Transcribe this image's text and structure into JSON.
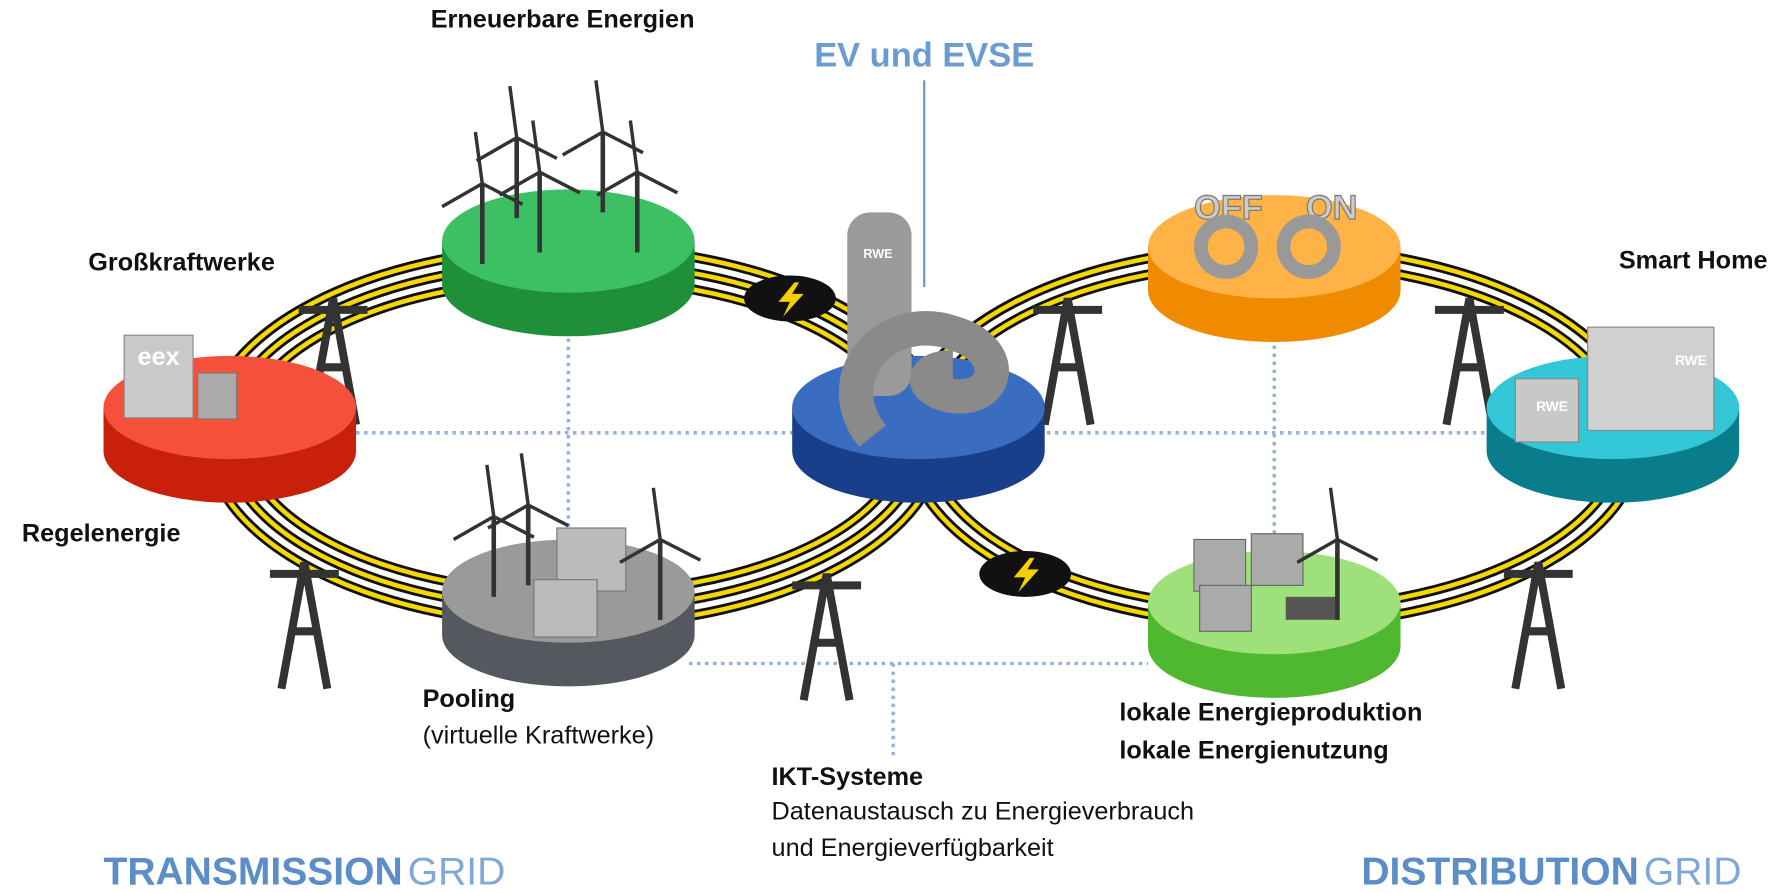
{
  "labels": {
    "renewables": "Erneuerbare Energien",
    "ev": "EV und EVSE",
    "power_plants": "Großkraftwerke",
    "smart_home": "Smart Home",
    "balancing": "Regelenergie",
    "pooling": "Pooling",
    "pooling_sub": "(virtuelle Kraftwerke)",
    "local_1": "lokale Energieproduktion",
    "local_2": "lokale Energienutzung",
    "ict": "IKT-Systeme",
    "ict_sub_1": "Datenaustausch zu Energieverbrauch",
    "ict_sub_2": "und Energieverfügbarkeit"
  },
  "footer": {
    "transmission_bold": "TRANSMISSION",
    "transmission_rest": "GRID",
    "distribution_bold": "DISTRIBUTION",
    "distribution_rest": "GRID"
  },
  "icons": {
    "eex": "eex",
    "rwe": "RWE",
    "off": "OFF",
    "on": "ON"
  }
}
